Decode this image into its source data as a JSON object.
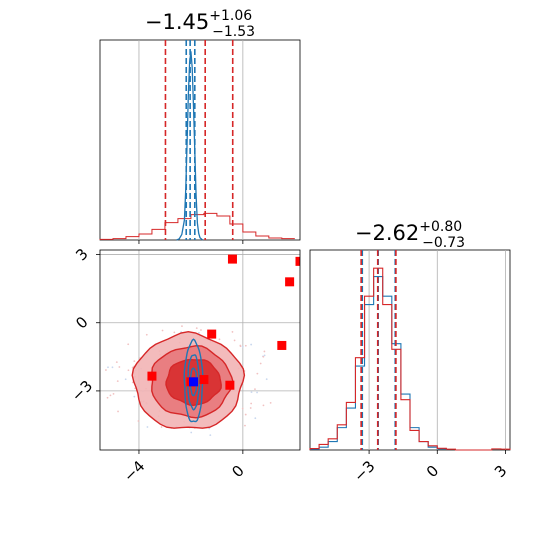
{
  "chart_data": {
    "type": "corner",
    "colors": {
      "blue": "#1f77b4",
      "red": "#d62728",
      "red_fill": "#e8787a",
      "red_light": "#f2b4b5",
      "marker_blue": "#0000ff",
      "grid": "#b0b0b0"
    },
    "panels": [
      {
        "id": "hist-param1",
        "title": {
          "main": "−1.45",
          "sup": "+1.06",
          "sub": "−1.53"
        },
        "xlim": [
          -5.5,
          2.2
        ],
        "grid_x": [
          -4,
          0
        ],
        "red_hist_bins": [
          -5.5,
          -5.0,
          -4.5,
          -4.0,
          -3.5,
          -3.0,
          -2.5,
          -2.0,
          -1.5,
          -1.0,
          -0.5,
          0.0,
          0.5,
          1.0,
          1.5,
          2.0
        ],
        "red_hist_counts": [
          0.5,
          1.0,
          2.5,
          4.5,
          8,
          13,
          16,
          19,
          20,
          18,
          12,
          6,
          3,
          1.5,
          1
        ],
        "blue_curve_x": [
          -2.55,
          -2.45,
          -2.35,
          -2.25,
          -2.2,
          -2.15,
          -2.1,
          -2.05,
          -2.0,
          -1.95,
          -1.9,
          -1.85,
          -1.8,
          -1.75,
          -1.7,
          -1.65,
          -1.55
        ],
        "blue_curve_y": [
          0,
          1,
          5,
          18,
          45,
          85,
          130,
          160,
          170,
          155,
          120,
          80,
          40,
          15,
          6,
          2,
          0
        ],
        "red_quantiles": [
          -2.98,
          -1.45,
          -0.39
        ],
        "blue_quantiles": [
          -2.18,
          -2.03,
          -1.85
        ]
      },
      {
        "id": "hist-param2",
        "title": {
          "main": "−2.62",
          "sup": "+0.80",
          "sub": "−0.73"
        },
        "xlim": [
          -5.6,
          3.2
        ],
        "xticks": [
          -3,
          0,
          3
        ],
        "xtick_labels": [
          "−3",
          "0",
          "3"
        ],
        "blue_hist_bins": [
          -5.6,
          -5.2,
          -4.8,
          -4.4,
          -4.0,
          -3.6,
          -3.2,
          -2.8,
          -2.4,
          -2.0,
          -1.6,
          -1.2,
          -0.8,
          -0.4,
          0.0,
          0.4
        ],
        "blue_hist_counts": [
          0.3,
          1,
          3,
          8,
          15,
          30,
          52,
          62,
          55,
          38,
          20,
          8,
          3,
          1,
          0.4
        ],
        "red_hist_bins": [
          -5.6,
          -5.2,
          -4.8,
          -4.4,
          -4.0,
          -3.6,
          -3.2,
          -2.8,
          -2.4,
          -2.0,
          -1.6,
          -1.2,
          -0.8,
          -0.4,
          0.0,
          0.4,
          0.8,
          1.2,
          1.6,
          2.0,
          2.4,
          2.8,
          3.2
        ],
        "red_hist_counts": [
          0.5,
          2,
          4,
          9,
          17,
          33,
          55,
          65,
          52,
          36,
          18,
          7,
          3,
          1.5,
          0.6,
          0.3,
          0,
          0,
          0,
          0,
          0.4,
          0.3
        ],
        "red_quantiles": [
          -3.35,
          -2.62,
          -1.82
        ],
        "blue_quantiles": [
          -3.3,
          -2.6,
          -1.85
        ]
      },
      {
        "id": "joint",
        "xlim": [
          -5.5,
          2.2
        ],
        "ylim": [
          -5.6,
          3.2
        ],
        "xticks": [
          -4,
          0
        ],
        "xtick_labels": [
          "−4",
          "0"
        ],
        "yticks": [
          3,
          0,
          -3
        ],
        "ytick_labels": [
          "3",
          "0",
          "−3"
        ],
        "red_squares": [
          [
            -0.4,
            2.8
          ],
          [
            2.2,
            2.7
          ],
          [
            1.8,
            1.8
          ],
          [
            -1.2,
            -0.5
          ],
          [
            1.5,
            -1.0
          ],
          [
            -3.5,
            -2.35
          ],
          [
            -1.5,
            -2.5
          ],
          [
            -0.5,
            -2.75
          ],
          [
            -2.0,
            -2.6
          ]
        ],
        "blue_square": [
          -1.9,
          -2.6
        ],
        "red_contours": [
          {
            "level": "outer",
            "center": [
              -2.1,
              -2.6
            ],
            "rx": 2.1,
            "ry": 2.1
          },
          {
            "level": "mid",
            "center": [
              -2.0,
              -2.6
            ],
            "rx": 1.55,
            "ry": 1.55
          },
          {
            "level": "inner",
            "center": [
              -1.9,
              -2.6
            ],
            "rx": 1.05,
            "ry": 1.0
          }
        ],
        "blue_contours": [
          {
            "center": [
              -1.9,
              -2.6
            ],
            "rx": 0.35,
            "ry": 1.8
          },
          {
            "center": [
              -1.9,
              -2.6
            ],
            "rx": 0.22,
            "ry": 1.2
          },
          {
            "center": [
              -1.9,
              -2.6
            ],
            "rx": 0.12,
            "ry": 0.6
          }
        ]
      }
    ]
  }
}
